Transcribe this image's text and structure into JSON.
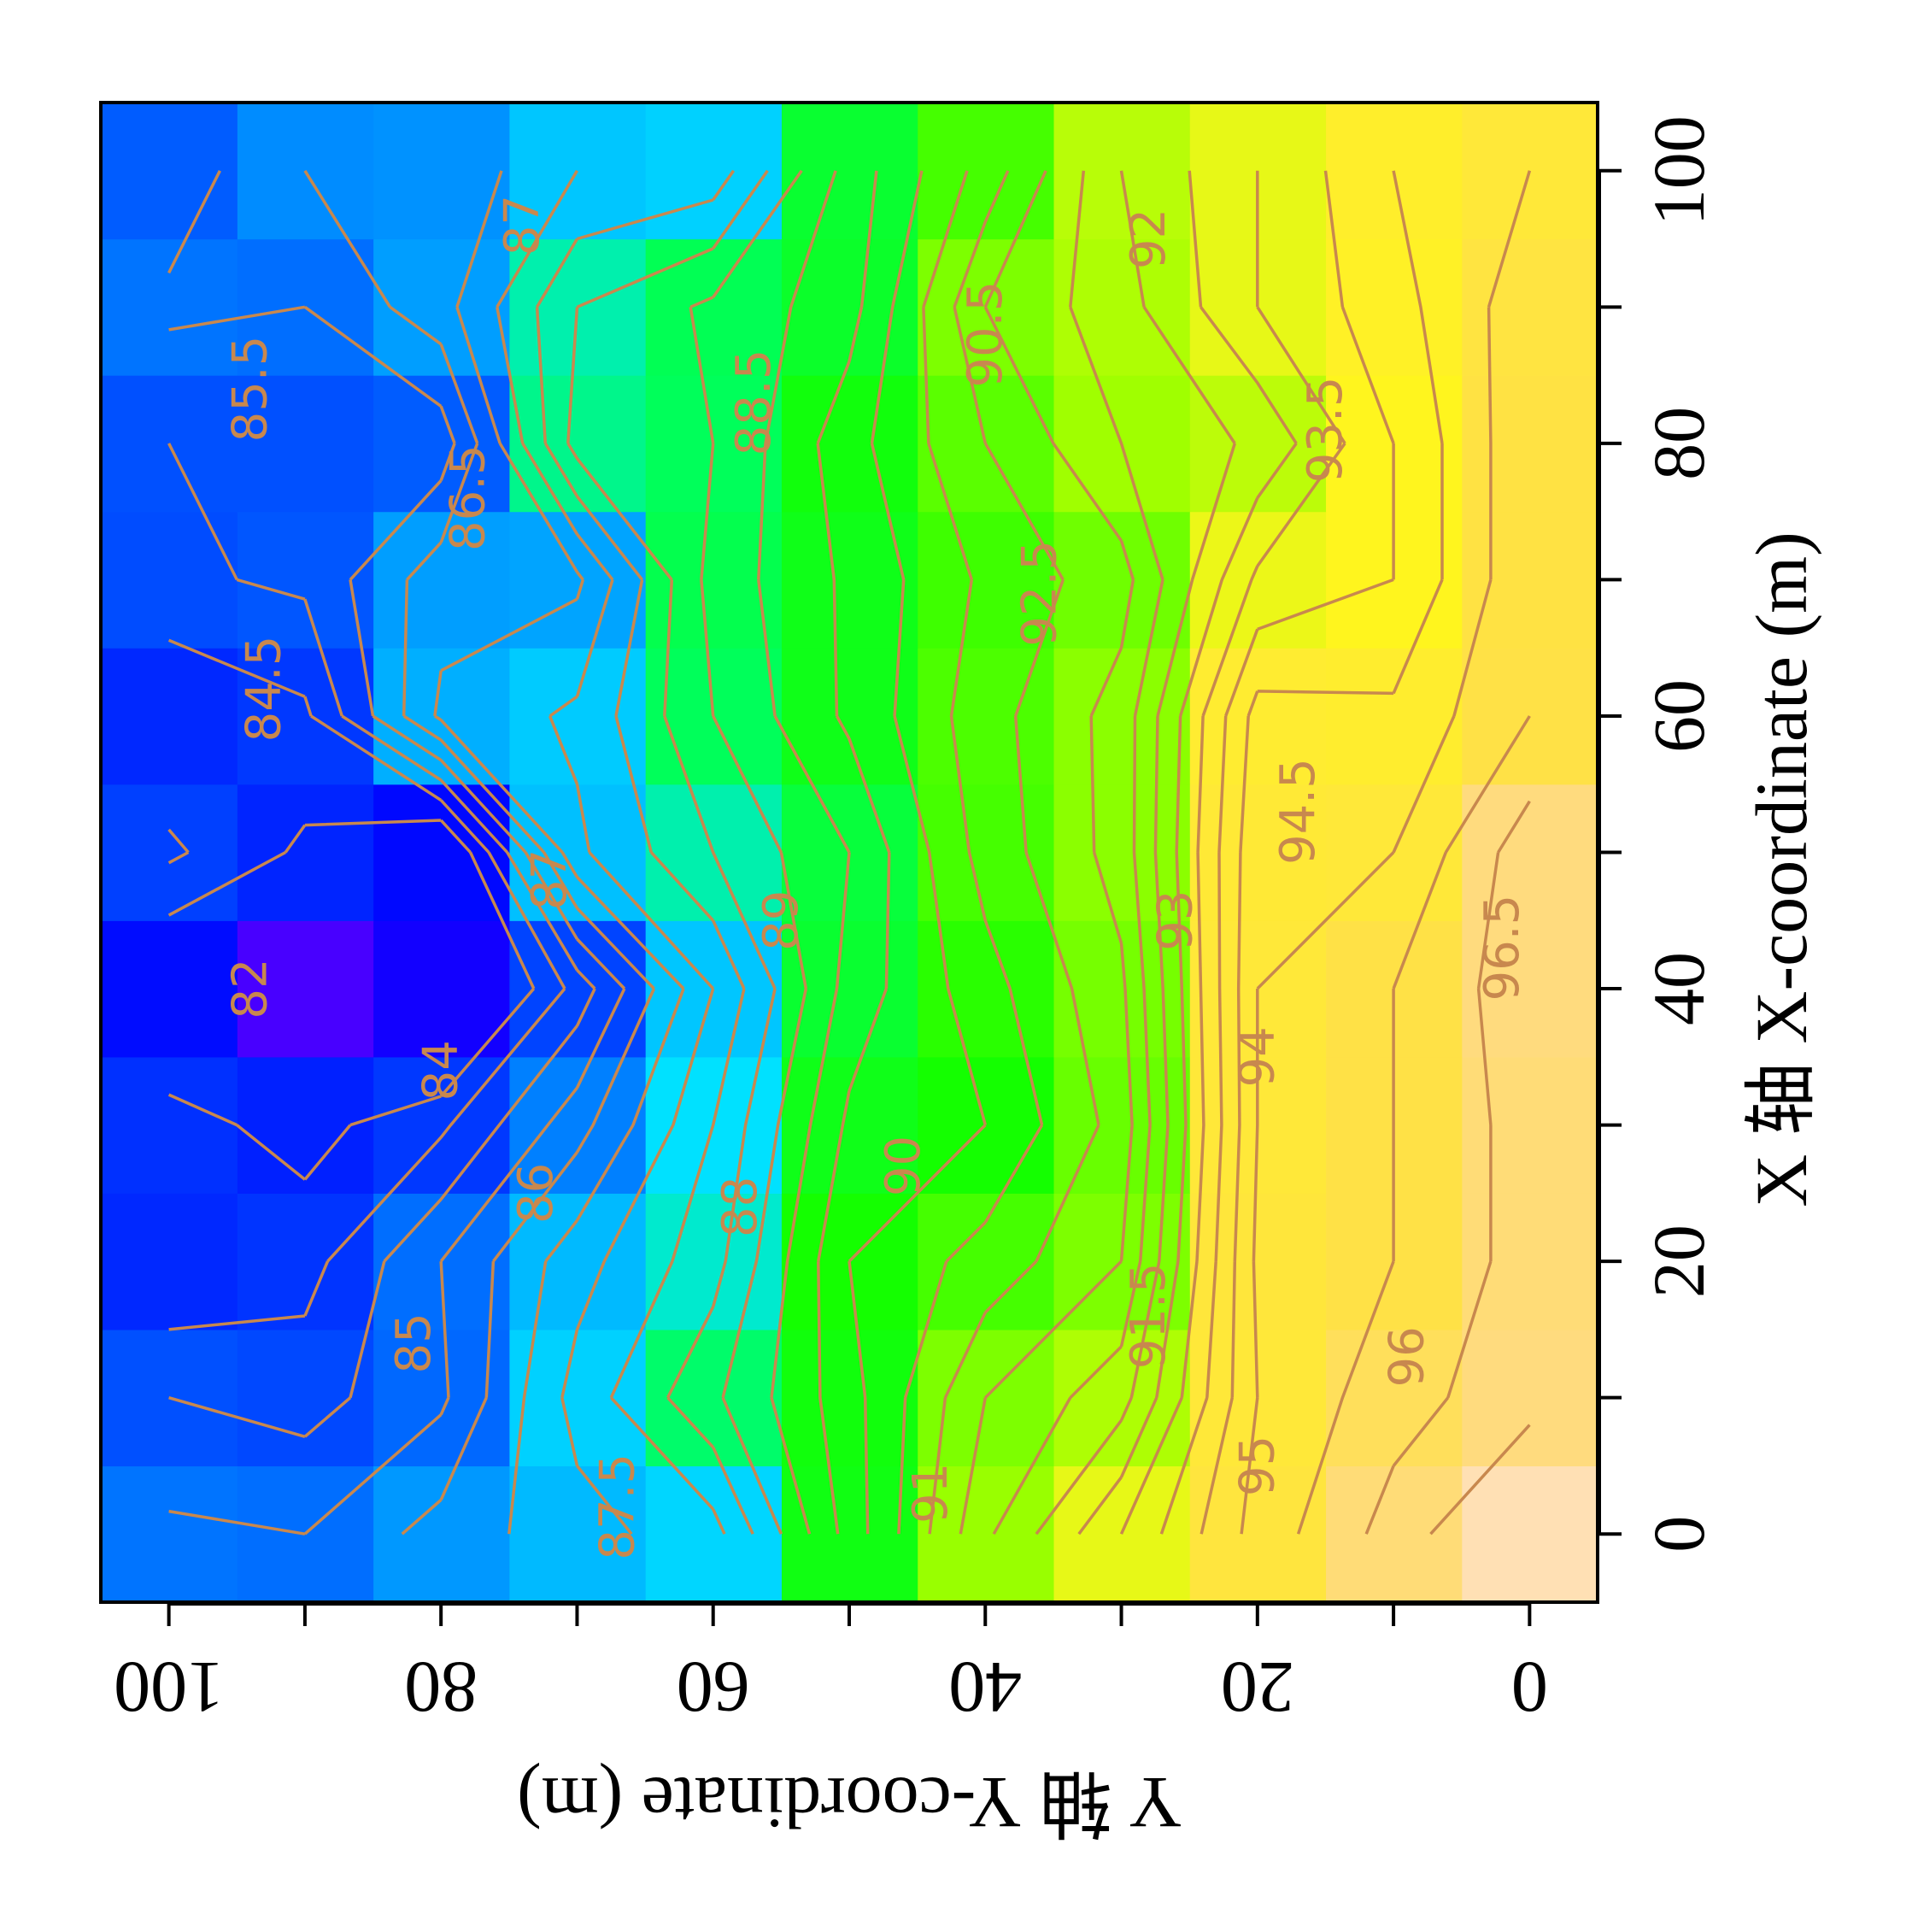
{
  "chart_data": {
    "type": "heatmap",
    "xlabel": "X 轴 X-coordinate (m)",
    "ylabel": "Y 轴 Y-coordinate (m)",
    "xlim": [
      -5,
      105
    ],
    "ylim": [
      -5,
      105
    ],
    "x_ticks": [
      "0",
      "20",
      "40",
      "60",
      "80",
      "100"
    ],
    "y_ticks": [
      "0",
      "20",
      "40",
      "60",
      "80",
      "100"
    ],
    "grid_x": [
      0,
      10,
      20,
      30,
      40,
      50,
      60,
      70,
      80,
      90,
      100
    ],
    "grid_y": [
      0,
      10,
      20,
      30,
      40,
      50,
      60,
      70,
      80,
      90,
      100
    ],
    "z_rows_by_y": [
      [
        97.3,
        96.3,
        96.2,
        96.2,
        96.3,
        96.3,
        95.5,
        95.4,
        95.4,
        95.3,
        95.0
      ],
      [
        96.2,
        95.8,
        95.5,
        95.5,
        95.5,
        95.0,
        94.6,
        94.0,
        94.0,
        94.3,
        94.5
      ],
      [
        95.2,
        95.0,
        95.1,
        95.0,
        95.0,
        94.9,
        94.7,
        93.6,
        92.6,
        93.5,
        93.5
      ],
      [
        93.5,
        92.3,
        91.5,
        91.2,
        91.4,
        91.7,
        91.7,
        91.3,
        92.0,
        92.3,
        92.5
      ],
      [
        91.9,
        91.5,
        90.7,
        90.0,
        90.3,
        90.7,
        90.8,
        90.6,
        91.0,
        91.5,
        90.7
      ],
      [
        89.7,
        89.8,
        90.0,
        89.6,
        89.2,
        89.0,
        89.6,
        89.6,
        89.8,
        89.3,
        89.2
      ],
      [
        87.3,
        88.4,
        87.8,
        87.5,
        87.0,
        88.0,
        88.5,
        88.7,
        88.5,
        88.6,
        87.2
      ],
      [
        86.8,
        87.2,
        86.8,
        85.8,
        84.7,
        86.9,
        87.1,
        86.4,
        88.2,
        88.0,
        87.0
      ],
      [
        86.2,
        85.4,
        85.5,
        84.4,
        82.5,
        83.2,
        86.6,
        86.3,
        85.2,
        86.3,
        86.1
      ],
      [
        85.5,
        84.8,
        84.3,
        83.8,
        81.0,
        83.9,
        84.4,
        85.1,
        85.0,
        85.5,
        86.0
      ],
      [
        85.6,
        85.0,
        84.0,
        84.2,
        83.3,
        84.6,
        84.0,
        84.9,
        85.0,
        85.6,
        85.2
      ]
    ],
    "contour_levels": [
      84,
      84.5,
      85,
      85.5,
      86,
      86.5,
      87,
      87.5,
      88,
      88.5,
      89,
      89.5,
      90,
      90.5,
      91,
      91.5,
      92,
      92.5,
      93,
      93.5,
      94,
      94.5,
      95,
      95.5,
      96,
      96.5
    ],
    "contour_labels": [
      {
        "text": "82",
        "x": 40,
        "y": 94
      },
      {
        "text": "84",
        "x": 34,
        "y": 80
      },
      {
        "text": "84.5",
        "x": 62,
        "y": 93
      },
      {
        "text": "85",
        "x": 14,
        "y": 82
      },
      {
        "text": "85.5",
        "x": 84,
        "y": 94
      },
      {
        "text": "86",
        "x": 25,
        "y": 73
      },
      {
        "text": "86.5",
        "x": 76,
        "y": 78
      },
      {
        "text": "87",
        "x": 96,
        "y": 74
      },
      {
        "text": "87",
        "x": 48,
        "y": 72
      },
      {
        "text": "87.5",
        "x": 2,
        "y": 67
      },
      {
        "text": "88",
        "x": 24,
        "y": 58
      },
      {
        "text": "88.5",
        "x": 83,
        "y": 57
      },
      {
        "text": "89",
        "x": 45,
        "y": 55
      },
      {
        "text": "90",
        "x": 27,
        "y": 46
      },
      {
        "text": "90.5",
        "x": 88,
        "y": 40
      },
      {
        "text": "91",
        "x": 3,
        "y": 44
      },
      {
        "text": "91.5",
        "x": 16,
        "y": 28
      },
      {
        "text": "92",
        "x": 95,
        "y": 28
      },
      {
        "text": "92.5",
        "x": 69,
        "y": 36
      },
      {
        "text": "93",
        "x": 45,
        "y": 26
      },
      {
        "text": "93.5",
        "x": 81,
        "y": 15
      },
      {
        "text": "94",
        "x": 35,
        "y": 20
      },
      {
        "text": "94.5",
        "x": 53,
        "y": 17
      },
      {
        "text": "95",
        "x": 5,
        "y": 20
      },
      {
        "text": "96",
        "x": 13,
        "y": 9
      },
      {
        "text": "96.5",
        "x": 43,
        "y": 2
      }
    ]
  }
}
